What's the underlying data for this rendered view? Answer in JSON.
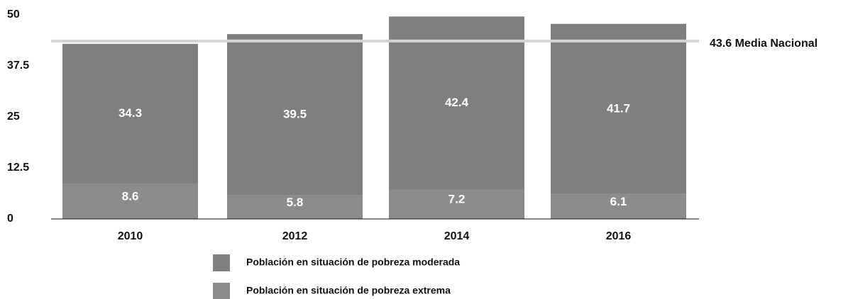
{
  "chart_data": {
    "type": "stacked_bar",
    "categories": [
      "2010",
      "2012",
      "2014",
      "2016"
    ],
    "series": [
      {
        "name": "Población en situación de pobreza extrema",
        "color": "#8c8c8c",
        "values": [
          8.6,
          5.8,
          7.2,
          6.1
        ]
      },
      {
        "name": "Población en situación de pobreza moderada",
        "color": "#7f7f7f",
        "values": [
          34.3,
          39.5,
          42.4,
          41.7
        ]
      }
    ],
    "reference_line": {
      "value": 43.6,
      "label": "43.6 Media Nacional",
      "color": "#d4d4d4"
    },
    "ylim": [
      0,
      50
    ],
    "yticks": [
      0,
      12.5,
      25,
      37.5,
      50
    ]
  }
}
